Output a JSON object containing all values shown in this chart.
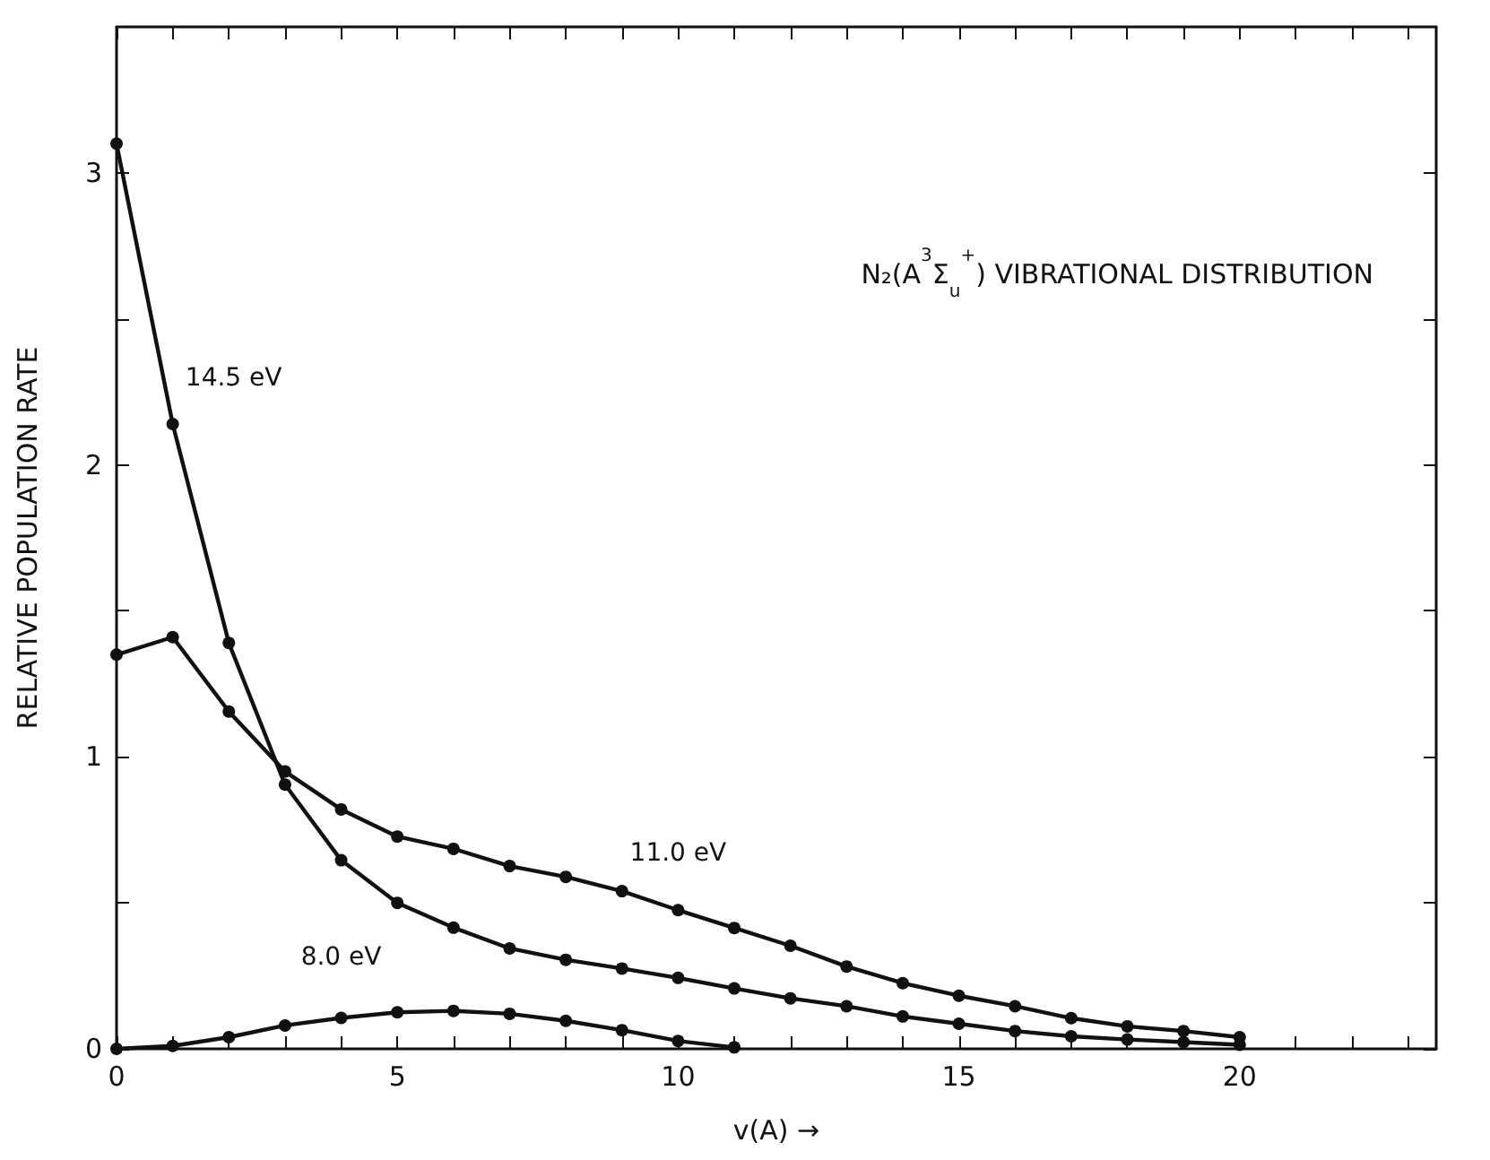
{
  "chart_data": {
    "type": "line",
    "title": "N₂(A$^{3}$Σ$_{u}$$^{+}$) VIBRATIONAL DISTRIBUTION",
    "xlabel": "v(A) →",
    "ylabel": "RELATIVE POPULATION RATE",
    "x": [
      0,
      1,
      2,
      3,
      4,
      5,
      6,
      7,
      8,
      9,
      10,
      11,
      12,
      13,
      14,
      15,
      16,
      17,
      18,
      19,
      20
    ],
    "series": [
      {
        "name": "14.5 eV",
        "color": "#111111",
        "values": [
          3.1,
          2.14,
          1.39,
          0.905,
          0.646,
          0.5,
          0.415,
          0.344,
          0.305,
          0.275,
          0.243,
          0.207,
          0.173,
          0.146,
          0.111,
          0.086,
          0.061,
          0.043,
          0.032,
          0.023,
          0.014
        ]
      },
      {
        "name": "11.0 eV",
        "color": "#111111",
        "values": [
          1.35,
          1.41,
          1.155,
          0.95,
          0.82,
          0.727,
          0.685,
          0.626,
          0.589,
          0.54,
          0.475,
          0.414,
          0.353,
          0.282,
          0.225,
          0.182,
          0.146,
          0.105,
          0.077,
          0.061,
          0.04
        ]
      },
      {
        "name": "8.0 eV",
        "color": "#111111",
        "x": [
          0,
          1,
          2,
          3,
          4,
          5,
          6,
          7,
          8,
          9,
          10,
          11
        ],
        "values": [
          0,
          0.01,
          0.04,
          0.08,
          0.106,
          0.125,
          0.13,
          0.12,
          0.096,
          0.064,
          0.027,
          0.005
        ]
      }
    ],
    "xlim": [
      0,
      23.5
    ],
    "xticks": [
      0,
      {
        "value": 1,
        "label": null
      },
      {
        "value": 2,
        "label": null
      },
      {
        "value": 3,
        "label": null
      },
      {
        "value": 4,
        "label": null
      },
      5,
      {
        "value": 6,
        "label": null
      },
      {
        "value": 7,
        "label": null
      },
      {
        "value": 8,
        "label": null
      },
      {
        "value": 9,
        "label": null
      },
      10,
      {
        "value": 11,
        "label": null
      },
      {
        "value": 12,
        "label": null
      },
      {
        "value": 13,
        "label": null
      },
      {
        "value": 14,
        "label": null
      },
      15,
      {
        "value": 16,
        "label": null
      },
      {
        "value": 17,
        "label": null
      },
      {
        "value": 18,
        "label": null
      },
      {
        "value": 19,
        "label": null
      },
      20,
      {
        "value": 21,
        "label": null
      },
      {
        "value": 22,
        "label": null
      },
      {
        "value": 23,
        "label": null
      }
    ],
    "ylim": [
      0,
      3.5
    ],
    "yticks": [
      0,
      {
        "value": 0.5,
        "label": null
      },
      1,
      {
        "value": 1.5,
        "label": null
      },
      2,
      {
        "value": 2.5,
        "label": null
      },
      3
    ],
    "grid": false,
    "legend": false,
    "marker": "circle",
    "line_style": "solid"
  }
}
